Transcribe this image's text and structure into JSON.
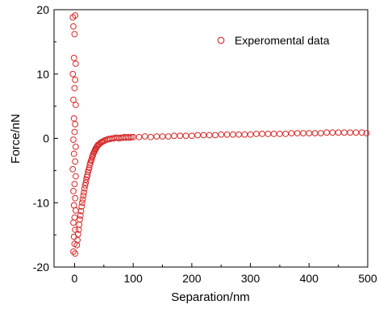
{
  "chart_data": {
    "type": "scatter",
    "title": "",
    "xlabel": "Separation/nm",
    "ylabel": "Force/nN",
    "xlim": [
      -35,
      500
    ],
    "ylim": [
      -20,
      20
    ],
    "xticks": [
      0,
      100,
      200,
      300,
      400,
      500
    ],
    "yticks": [
      -20,
      -10,
      0,
      10,
      20
    ],
    "grid": false,
    "legend_position": "top-right",
    "marker": "open-circle",
    "marker_color": "#d62828",
    "series": [
      {
        "name": "Experomental data",
        "points": [
          [
            -3,
            18.8
          ],
          [
            1,
            19.1
          ],
          [
            -2,
            17.4
          ],
          [
            0,
            16.2
          ],
          [
            -1,
            12.5
          ],
          [
            2,
            11.6
          ],
          [
            -3,
            10.0
          ],
          [
            1,
            9.1
          ],
          [
            0,
            7.8
          ],
          [
            -2,
            6.0
          ],
          [
            2,
            5.2
          ],
          [
            -1,
            3.1
          ],
          [
            1,
            2.2
          ],
          [
            0,
            1.0
          ],
          [
            -2,
            -0.2
          ],
          [
            2,
            -1.3
          ],
          [
            -1,
            -2.4
          ],
          [
            1,
            -3.6
          ],
          [
            -3,
            -4.8
          ],
          [
            2,
            -5.9
          ],
          [
            0,
            -7.1
          ],
          [
            -2,
            -8.2
          ],
          [
            1,
            -9.3
          ],
          [
            -1,
            -10.4
          ],
          [
            2,
            -11.2
          ],
          [
            0,
            -12.3
          ],
          [
            -2,
            -13.1
          ],
          [
            1,
            -14.2
          ],
          [
            -1,
            -15.3
          ],
          [
            0,
            -16.4
          ],
          [
            -2,
            -17.6
          ],
          [
            1,
            -17.9
          ],
          [
            4,
            -16.6
          ],
          [
            5,
            -15.8
          ],
          [
            6,
            -14.9
          ],
          [
            7,
            -14.2
          ],
          [
            8,
            -13.4
          ],
          [
            9,
            -12.6
          ],
          [
            10,
            -12.0
          ],
          [
            11,
            -11.3
          ],
          [
            12,
            -10.6
          ],
          [
            13,
            -10.0
          ],
          [
            14,
            -9.5
          ],
          [
            15,
            -8.9
          ],
          [
            16,
            -8.4
          ],
          [
            17,
            -7.8
          ],
          [
            18,
            -7.3
          ],
          [
            19,
            -6.9
          ],
          [
            20,
            -6.4
          ],
          [
            21,
            -6.0
          ],
          [
            22,
            -5.7
          ],
          [
            23,
            -5.2
          ],
          [
            24,
            -4.9
          ],
          [
            25,
            -4.6
          ],
          [
            26,
            -4.1
          ],
          [
            27,
            -3.8
          ],
          [
            28,
            -3.5
          ],
          [
            29,
            -3.3
          ],
          [
            30,
            -2.9
          ],
          [
            31,
            -2.7
          ],
          [
            32,
            -2.4
          ],
          [
            33,
            -2.2
          ],
          [
            34,
            -2.0
          ],
          [
            35,
            -1.8
          ],
          [
            36,
            -1.6
          ],
          [
            37,
            -1.5
          ],
          [
            38,
            -1.3
          ],
          [
            39,
            -1.2
          ],
          [
            40,
            -1.0
          ],
          [
            42,
            -0.9
          ],
          [
            44,
            -0.7
          ],
          [
            46,
            -0.6
          ],
          [
            48,
            -0.5
          ],
          [
            50,
            -0.4
          ],
          [
            52,
            -0.3
          ],
          [
            55,
            -0.2
          ],
          [
            58,
            -0.1
          ],
          [
            61,
            -0.1
          ],
          [
            64,
            0.0
          ],
          [
            67,
            0.0
          ],
          [
            70,
            0.1
          ],
          [
            73,
            0.1
          ],
          [
            76,
            0.0
          ],
          [
            79,
            0.1
          ],
          [
            82,
            0.1
          ],
          [
            85,
            0.2
          ],
          [
            88,
            0.1
          ],
          [
            91,
            0.2
          ],
          [
            94,
            0.1
          ],
          [
            97,
            0.2
          ],
          [
            100,
            0.2
          ],
          [
            110,
            0.2
          ],
          [
            120,
            0.3
          ],
          [
            130,
            0.2
          ],
          [
            140,
            0.3
          ],
          [
            150,
            0.3
          ],
          [
            160,
            0.3
          ],
          [
            170,
            0.4
          ],
          [
            180,
            0.4
          ],
          [
            190,
            0.4
          ],
          [
            200,
            0.4
          ],
          [
            210,
            0.5
          ],
          [
            220,
            0.5
          ],
          [
            230,
            0.5
          ],
          [
            240,
            0.5
          ],
          [
            250,
            0.6
          ],
          [
            260,
            0.6
          ],
          [
            270,
            0.6
          ],
          [
            280,
            0.6
          ],
          [
            290,
            0.6
          ],
          [
            300,
            0.6
          ],
          [
            310,
            0.7
          ],
          [
            320,
            0.7
          ],
          [
            330,
            0.7
          ],
          [
            340,
            0.7
          ],
          [
            350,
            0.7
          ],
          [
            360,
            0.7
          ],
          [
            370,
            0.8
          ],
          [
            380,
            0.8
          ],
          [
            390,
            0.8
          ],
          [
            400,
            0.8
          ],
          [
            410,
            0.8
          ],
          [
            420,
            0.8
          ],
          [
            430,
            0.9
          ],
          [
            440,
            0.9
          ],
          [
            450,
            0.9
          ],
          [
            460,
            0.9
          ],
          [
            470,
            0.9
          ],
          [
            480,
            0.9
          ],
          [
            490,
            0.9
          ],
          [
            498,
            0.8
          ]
        ]
      }
    ]
  }
}
